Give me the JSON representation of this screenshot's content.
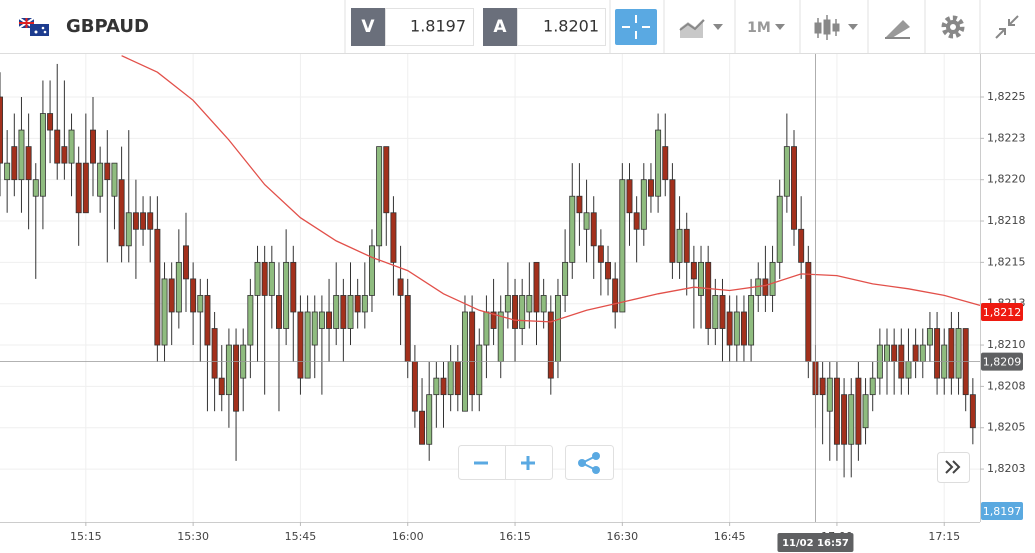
{
  "header": {
    "symbol": "GBPAUD",
    "bid_label": "V",
    "bid": 1.8197,
    "ask_label": "A",
    "ask": 1.8201,
    "timeframe": "1M"
  },
  "chart_data": {
    "type": "candlestick",
    "up_color": "#8fbc7f",
    "down_color": "#a3301c",
    "grid": true,
    "xlim": [
      "15:03",
      "17:20"
    ],
    "xticks": [
      "15:15",
      "15:30",
      "15:45",
      "16:00",
      "16:15",
      "16:30",
      "16:45",
      "17:00",
      "17:15"
    ],
    "ylim": [
      1.81993,
      1.82276
    ],
    "yticks": [
      {
        "value": 1.8225,
        "label": "1,8225"
      },
      {
        "value": 1.82225,
        "label": "1,8223"
      },
      {
        "value": 1.822,
        "label": "1,8220"
      },
      {
        "value": 1.82175,
        "label": "1,8218"
      },
      {
        "value": 1.8215,
        "label": "1,8215"
      },
      {
        "value": 1.82125,
        "label": "1,8213"
      },
      {
        "value": 1.821,
        "label": "1,8210"
      },
      {
        "value": 1.82075,
        "label": "1,8208"
      },
      {
        "value": 1.8205,
        "label": "1,8205"
      },
      {
        "value": 1.82025,
        "label": "1,8203"
      }
    ],
    "x": [
      "15:03",
      "15:04",
      "15:05",
      "15:06",
      "15:07",
      "15:08",
      "15:09",
      "15:10",
      "15:11",
      "15:12",
      "15:13",
      "15:14",
      "15:15",
      "15:16",
      "15:17",
      "15:18",
      "15:19",
      "15:20",
      "15:21",
      "15:22",
      "15:23",
      "15:24",
      "15:25",
      "15:26",
      "15:27",
      "15:28",
      "15:29",
      "15:30",
      "15:31",
      "15:32",
      "15:33",
      "15:34",
      "15:35",
      "15:36",
      "15:37",
      "15:38",
      "15:39",
      "15:40",
      "15:41",
      "15:42",
      "15:43",
      "15:44",
      "15:45",
      "15:46",
      "15:47",
      "15:48",
      "15:49",
      "15:50",
      "15:51",
      "15:52",
      "15:53",
      "15:54",
      "15:55",
      "15:56",
      "15:57",
      "15:58",
      "15:59",
      "16:00",
      "16:01",
      "16:02",
      "16:03",
      "16:04",
      "16:05",
      "16:06",
      "16:07",
      "16:08",
      "16:09",
      "16:10",
      "16:11",
      "16:12",
      "16:13",
      "16:14",
      "16:15",
      "16:16",
      "16:17",
      "16:18",
      "16:19",
      "16:20",
      "16:21",
      "16:22",
      "16:23",
      "16:24",
      "16:25",
      "16:26",
      "16:27",
      "16:28",
      "16:29",
      "16:30",
      "16:31",
      "16:32",
      "16:33",
      "16:34",
      "16:35",
      "16:36",
      "16:37",
      "16:38",
      "16:39",
      "16:40",
      "16:41",
      "16:42",
      "16:43",
      "16:44",
      "16:45",
      "16:46",
      "16:47",
      "16:48",
      "16:49",
      "16:50",
      "16:51",
      "16:52",
      "16:53",
      "16:54",
      "16:55",
      "16:56",
      "16:57",
      "16:58",
      "16:59",
      "17:00",
      "17:01",
      "17:02",
      "17:03",
      "17:04",
      "17:05",
      "17:06",
      "17:07",
      "17:08",
      "17:09",
      "17:10",
      "17:11",
      "17:12",
      "17:13",
      "17:14",
      "17:15",
      "17:16",
      "17:17",
      "17:18",
      "17:19"
    ],
    "ohlc": [
      [
        1.8225,
        1.82265,
        1.8219,
        1.8221
      ],
      [
        1.822,
        1.8223,
        1.8218,
        1.8221
      ],
      [
        1.8222,
        1.8224,
        1.8219,
        1.822
      ],
      [
        1.822,
        1.8225,
        1.8218,
        1.8223
      ],
      [
        1.8222,
        1.8224,
        1.8217,
        1.822
      ],
      [
        1.8219,
        1.8221,
        1.8214,
        1.822
      ],
      [
        1.8219,
        1.8226,
        1.8217,
        1.8224
      ],
      [
        1.8224,
        1.8226,
        1.8221,
        1.8223
      ],
      [
        1.8223,
        1.8227,
        1.822,
        1.8221
      ],
      [
        1.8222,
        1.8226,
        1.822,
        1.8221
      ],
      [
        1.8221,
        1.8224,
        1.8219,
        1.8223
      ],
      [
        1.8221,
        1.8222,
        1.8216,
        1.8218
      ],
      [
        1.8221,
        1.8224,
        1.8218,
        1.8218
      ],
      [
        1.8223,
        1.8225,
        1.8219,
        1.8221
      ],
      [
        1.8219,
        1.8222,
        1.8218,
        1.8221
      ],
      [
        1.8221,
        1.8223,
        1.8215,
        1.822
      ],
      [
        1.8219,
        1.8221,
        1.8217,
        1.8221
      ],
      [
        1.822,
        1.8222,
        1.8215,
        1.8216
      ],
      [
        1.8216,
        1.8223,
        1.8215,
        1.8218
      ],
      [
        1.8218,
        1.822,
        1.8214,
        1.8217
      ],
      [
        1.8218,
        1.8219,
        1.8216,
        1.8217
      ],
      [
        1.8218,
        1.8219,
        1.8215,
        1.8217
      ],
      [
        1.8217,
        1.8219,
        1.8209,
        1.821
      ],
      [
        1.821,
        1.8215,
        1.8209,
        1.8214
      ],
      [
        1.8214,
        1.8215,
        1.821,
        1.8212
      ],
      [
        1.8212,
        1.8217,
        1.8211,
        1.8215
      ],
      [
        1.8216,
        1.8218,
        1.8212,
        1.8214
      ],
      [
        1.8214,
        1.8215,
        1.821,
        1.8212
      ],
      [
        1.8212,
        1.8214,
        1.8209,
        1.8213
      ],
      [
        1.8213,
        1.8214,
        1.8206,
        1.821
      ],
      [
        1.8211,
        1.8212,
        1.8206,
        1.8208
      ],
      [
        1.8208,
        1.821,
        1.8206,
        1.8207
      ],
      [
        1.8207,
        1.8211,
        1.8205,
        1.821
      ],
      [
        1.821,
        1.8211,
        1.8203,
        1.8206
      ],
      [
        1.8208,
        1.8211,
        1.8206,
        1.821
      ],
      [
        1.821,
        1.8214,
        1.8208,
        1.8213
      ],
      [
        1.8213,
        1.8216,
        1.8209,
        1.8215
      ],
      [
        1.8215,
        1.8216,
        1.8207,
        1.8213
      ],
      [
        1.8213,
        1.8216,
        1.8211,
        1.8215
      ],
      [
        1.8213,
        1.8215,
        1.8206,
        1.8211
      ],
      [
        1.8211,
        1.8217,
        1.821,
        1.8215
      ],
      [
        1.8215,
        1.8216,
        1.8209,
        1.8212
      ],
      [
        1.8212,
        1.8213,
        1.8207,
        1.8208
      ],
      [
        1.8208,
        1.8213,
        1.8208,
        1.8212
      ],
      [
        1.821,
        1.8213,
        1.8208,
        1.8212
      ],
      [
        1.8211,
        1.8213,
        1.8207,
        1.8212
      ],
      [
        1.8212,
        1.8214,
        1.8209,
        1.8211
      ],
      [
        1.8211,
        1.8215,
        1.821,
        1.8213
      ],
      [
        1.8213,
        1.8214,
        1.8209,
        1.8211
      ],
      [
        1.8211,
        1.8215,
        1.821,
        1.8213
      ],
      [
        1.8213,
        1.8214,
        1.8211,
        1.8212
      ],
      [
        1.8212,
        1.8215,
        1.8211,
        1.8213
      ],
      [
        1.8213,
        1.8217,
        1.8212,
        1.8216
      ],
      [
        1.8216,
        1.8222,
        1.8215,
        1.8222
      ],
      [
        1.8222,
        1.8222,
        1.8216,
        1.8218
      ],
      [
        1.8218,
        1.8219,
        1.8213,
        1.8215
      ],
      [
        1.8214,
        1.8216,
        1.821,
        1.8213
      ],
      [
        1.8213,
        1.8214,
        1.8208,
        1.8209
      ],
      [
        1.8209,
        1.821,
        1.8205,
        1.8206
      ],
      [
        1.8206,
        1.8208,
        1.8204,
        1.8204
      ],
      [
        1.8204,
        1.8209,
        1.8203,
        1.8207
      ],
      [
        1.8207,
        1.8209,
        1.8205,
        1.8208
      ],
      [
        1.8208,
        1.8209,
        1.8205,
        1.8207
      ],
      [
        1.8207,
        1.821,
        1.8206,
        1.8209
      ],
      [
        1.8209,
        1.821,
        1.8206,
        1.8207
      ],
      [
        1.8206,
        1.8213,
        1.8206,
        1.8212
      ],
      [
        1.8212,
        1.8213,
        1.8206,
        1.8207
      ],
      [
        1.8207,
        1.8211,
        1.8206,
        1.821
      ],
      [
        1.821,
        1.8213,
        1.8208,
        1.8212
      ],
      [
        1.8212,
        1.8214,
        1.821,
        1.8211
      ],
      [
        1.8209,
        1.8213,
        1.8208,
        1.8212
      ],
      [
        1.8212,
        1.8215,
        1.8211,
        1.8213
      ],
      [
        1.8213,
        1.8214,
        1.8209,
        1.8211
      ],
      [
        1.8211,
        1.8214,
        1.821,
        1.8213
      ],
      [
        1.8212,
        1.8215,
        1.8211,
        1.8213
      ],
      [
        1.8215,
        1.8215,
        1.821,
        1.8212
      ],
      [
        1.8212,
        1.8214,
        1.8211,
        1.8213
      ],
      [
        1.8212,
        1.8213,
        1.8207,
        1.8208
      ],
      [
        1.8209,
        1.8214,
        1.8208,
        1.8213
      ],
      [
        1.8213,
        1.8217,
        1.8212,
        1.8215
      ],
      [
        1.8215,
        1.8221,
        1.8214,
        1.8219
      ],
      [
        1.8219,
        1.8221,
        1.8216,
        1.8218
      ],
      [
        1.8217,
        1.822,
        1.8215,
        1.8218
      ],
      [
        1.8218,
        1.8219,
        1.8214,
        1.8216
      ],
      [
        1.8216,
        1.8217,
        1.8213,
        1.8215
      ],
      [
        1.8215,
        1.8216,
        1.8213,
        1.8214
      ],
      [
        1.8214,
        1.8215,
        1.8211,
        1.8212
      ],
      [
        1.8212,
        1.8221,
        1.8212,
        1.822
      ],
      [
        1.822,
        1.8221,
        1.8216,
        1.8218
      ],
      [
        1.8218,
        1.8219,
        1.8215,
        1.8217
      ],
      [
        1.8217,
        1.8221,
        1.8216,
        1.822
      ],
      [
        1.822,
        1.8221,
        1.8218,
        1.8219
      ],
      [
        1.8219,
        1.8224,
        1.8218,
        1.8223
      ],
      [
        1.8222,
        1.8224,
        1.8219,
        1.822
      ],
      [
        1.822,
        1.8221,
        1.8214,
        1.8215
      ],
      [
        1.8215,
        1.8219,
        1.8214,
        1.8217
      ],
      [
        1.8217,
        1.8218,
        1.8213,
        1.8215
      ],
      [
        1.8215,
        1.8216,
        1.8211,
        1.8214
      ],
      [
        1.8213,
        1.8216,
        1.8211,
        1.8215
      ],
      [
        1.8215,
        1.8216,
        1.821,
        1.8211
      ],
      [
        1.8211,
        1.8214,
        1.821,
        1.8213
      ],
      [
        1.8213,
        1.8214,
        1.8209,
        1.8211
      ],
      [
        1.8212,
        1.8213,
        1.8209,
        1.821
      ],
      [
        1.821,
        1.8213,
        1.8209,
        1.8212
      ],
      [
        1.8212,
        1.8213,
        1.8209,
        1.821
      ],
      [
        1.821,
        1.8214,
        1.8209,
        1.8213
      ],
      [
        1.8213,
        1.8215,
        1.8212,
        1.8214
      ],
      [
        1.8214,
        1.8216,
        1.8212,
        1.8213
      ],
      [
        1.8213,
        1.8216,
        1.8212,
        1.8215
      ],
      [
        1.8215,
        1.822,
        1.8214,
        1.8219
      ],
      [
        1.8219,
        1.8224,
        1.8218,
        1.8222
      ],
      [
        1.8222,
        1.8223,
        1.8216,
        1.8217
      ],
      [
        1.8217,
        1.8219,
        1.8214,
        1.8215
      ],
      [
        1.8215,
        1.8216,
        1.8208,
        1.8209
      ],
      [
        1.8209,
        1.821,
        1.8205,
        1.8207
      ],
      [
        1.8208,
        1.8209,
        1.8204,
        1.8207
      ],
      [
        1.8206,
        1.8209,
        1.8203,
        1.8208
      ],
      [
        1.8208,
        1.8209,
        1.8203,
        1.8204
      ],
      [
        1.8207,
        1.8208,
        1.8202,
        1.8204
      ],
      [
        1.8204,
        1.8208,
        1.8202,
        1.8207
      ],
      [
        1.8208,
        1.8209,
        1.8203,
        1.8204
      ],
      [
        1.8205,
        1.8208,
        1.8204,
        1.8207
      ],
      [
        1.8207,
        1.8209,
        1.8206,
        1.8208
      ],
      [
        1.8208,
        1.8211,
        1.8207,
        1.821
      ],
      [
        1.8209,
        1.8211,
        1.8207,
        1.821
      ],
      [
        1.821,
        1.8211,
        1.8207,
        1.8209
      ],
      [
        1.821,
        1.8211,
        1.8207,
        1.8208
      ],
      [
        1.8208,
        1.8211,
        1.8207,
        1.8209
      ],
      [
        1.821,
        1.8211,
        1.8208,
        1.8209
      ],
      [
        1.8209,
        1.8211,
        1.8208,
        1.821
      ],
      [
        1.821,
        1.8212,
        1.8209,
        1.8211
      ],
      [
        1.8211,
        1.8212,
        1.8207,
        1.8208
      ],
      [
        1.8208,
        1.8211,
        1.8207,
        1.821
      ],
      [
        1.8211,
        1.8212,
        1.8207,
        1.8208
      ],
      [
        1.8208,
        1.8212,
        1.8207,
        1.8211
      ],
      [
        1.8211,
        1.8211,
        1.8206,
        1.8207
      ],
      [
        1.8207,
        1.8208,
        1.8204,
        1.8205
      ]
    ],
    "moving_average": {
      "color": "#e2504a",
      "x": [
        "15:20",
        "15:25",
        "15:30",
        "15:35",
        "15:40",
        "15:45",
        "15:50",
        "15:55",
        "16:00",
        "16:05",
        "16:10",
        "16:15",
        "16:20",
        "16:25",
        "16:30",
        "16:35",
        "16:40",
        "16:45",
        "16:50",
        "16:55",
        "17:00",
        "17:05",
        "17:10",
        "17:15",
        "17:20"
      ],
      "values": [
        1.82275,
        1.82265,
        1.82248,
        1.82224,
        1.82197,
        1.82177,
        1.82163,
        1.82153,
        1.82145,
        1.82131,
        1.82121,
        1.82115,
        1.82114,
        1.82121,
        1.82126,
        1.82131,
        1.82135,
        1.82133,
        1.82136,
        1.82143,
        1.82142,
        1.82137,
        1.82134,
        1.8213,
        1.82124
      ]
    },
    "price_tags": [
      {
        "value": 1.8212,
        "label": "1,8212",
        "color": "#ee1a10"
      },
      {
        "value": 1.8197,
        "label": "1,8197",
        "color": "#5aa9e0"
      }
    ],
    "crosshair": {
      "x_label": "11/02 16:57",
      "y": {
        "value": 1.8209,
        "label": "1,8209"
      },
      "color": "#5f6062"
    }
  }
}
